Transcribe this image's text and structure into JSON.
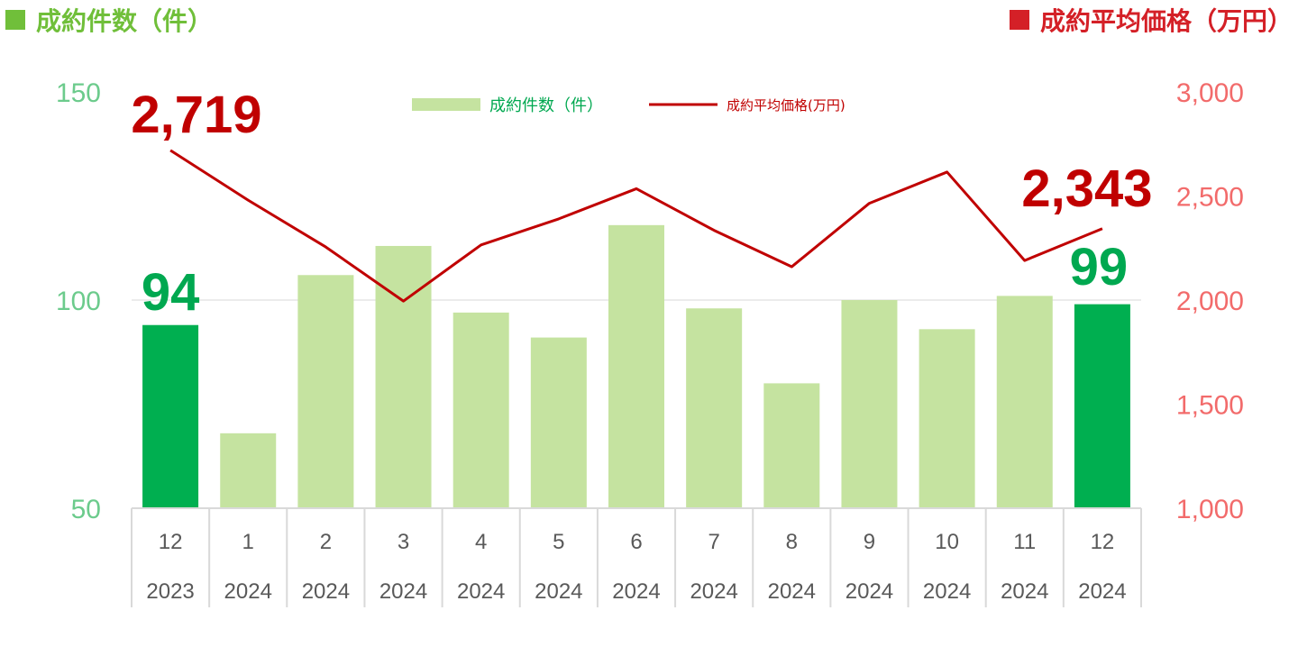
{
  "header": {
    "left_title": "成約件数（件）",
    "right_title": "成約平均価格（万円）"
  },
  "colors": {
    "left_accent": "#70BF3A",
    "right_accent": "#D42027",
    "bar_light": "#C5E3A0",
    "bar_highlight": "#00AF50",
    "line": "#C00000",
    "left_ticks": "#6CCB8C",
    "right_ticks": "#F26B6B",
    "left_label": "#00A850",
    "right_label": "#C00000"
  },
  "chart_data": {
    "type": "bar+line",
    "categories": [
      {
        "month": "12",
        "year": "2023"
      },
      {
        "month": "1",
        "year": "2024"
      },
      {
        "month": "2",
        "year": "2024"
      },
      {
        "month": "3",
        "year": "2024"
      },
      {
        "month": "4",
        "year": "2024"
      },
      {
        "month": "5",
        "year": "2024"
      },
      {
        "month": "6",
        "year": "2024"
      },
      {
        "month": "7",
        "year": "2024"
      },
      {
        "month": "8",
        "year": "2024"
      },
      {
        "month": "9",
        "year": "2024"
      },
      {
        "month": "10",
        "year": "2024"
      },
      {
        "month": "11",
        "year": "2024"
      },
      {
        "month": "12",
        "year": "2024"
      }
    ],
    "series": [
      {
        "name": "成約件数（件）",
        "type": "bar",
        "axis": "left",
        "values": [
          94,
          68,
          106,
          113,
          97,
          91,
          118,
          98,
          80,
          100,
          93,
          101,
          99
        ],
        "highlight": [
          true,
          false,
          false,
          false,
          false,
          false,
          false,
          false,
          false,
          false,
          false,
          false,
          true
        ]
      },
      {
        "name": "成約平均価格(万円)",
        "type": "line",
        "axis": "right",
        "values": [
          2719,
          2480,
          2255,
          1995,
          2265,
          2390,
          2535,
          2335,
          2160,
          2465,
          2615,
          2190,
          2343
        ]
      }
    ],
    "left_axis": {
      "ylim": [
        50,
        150
      ],
      "ticks": [
        "50",
        "100",
        "150"
      ]
    },
    "right_axis": {
      "ylim": [
        1000,
        3000
      ],
      "ticks": [
        "1,000",
        "1,500",
        "2,000",
        "2,500",
        "3,000"
      ]
    },
    "gridlines": [
      100
    ],
    "legend_position": "top-center",
    "data_labels": {
      "first_line": "2,719",
      "last_line": "2,343",
      "first_bar": "94",
      "last_bar": "99"
    }
  }
}
